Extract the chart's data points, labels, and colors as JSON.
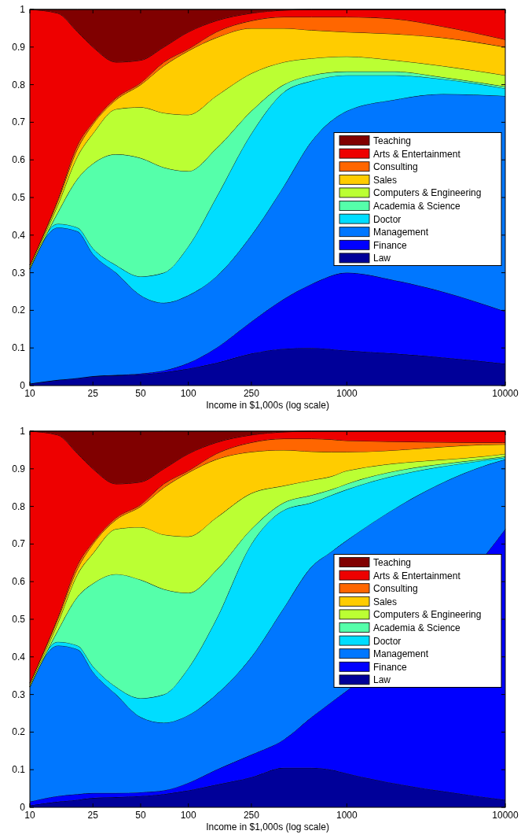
{
  "chart_data": [
    {
      "type": "area",
      "stacked": true,
      "log": "x",
      "legend": "right",
      "xlabel": "Income in $1,000s (log scale)",
      "xlim": [
        10,
        10000
      ],
      "xticks": [
        10,
        25,
        50,
        100,
        250,
        1000,
        10000
      ],
      "ylim": [
        0,
        1
      ],
      "yticks": [
        0,
        0.1,
        0.2,
        0.3,
        0.4,
        0.5,
        0.6,
        0.7,
        0.8,
        0.9,
        1
      ],
      "x": [
        10,
        15,
        20,
        25,
        35,
        50,
        70,
        100,
        150,
        250,
        400,
        600,
        1000,
        2000,
        4000,
        10000
      ],
      "series": [
        {
          "name": "Law",
          "color": "#000099",
          "values": [
            0.005,
            0.015,
            0.02,
            0.025,
            0.027,
            0.03,
            0.035,
            0.045,
            0.06,
            0.085,
            0.098,
            0.1,
            0.093,
            0.085,
            0.075,
            0.058
          ]
        },
        {
          "name": "Finance",
          "color": "#0000ff",
          "values": [
            0,
            0,
            0,
            0,
            0.001,
            0.002,
            0.005,
            0.015,
            0.04,
            0.085,
            0.132,
            0.17,
            0.207,
            0.195,
            0.175,
            0.139
          ]
        },
        {
          "name": "Management",
          "color": "#0077ff",
          "values": [
            0.305,
            0.405,
            0.39,
            0.325,
            0.272,
            0.208,
            0.18,
            0.18,
            0.19,
            0.23,
            0.3,
            0.38,
            0.43,
            0.48,
            0.525,
            0.573
          ]
        },
        {
          "name": "Doctor",
          "color": "#00ddff",
          "values": [
            0,
            0.01,
            0.01,
            0.015,
            0.02,
            0.05,
            0.08,
            0.13,
            0.21,
            0.27,
            0.25,
            0.16,
            0.095,
            0.065,
            0.04,
            0.02
          ]
        },
        {
          "name": "Academia & Science",
          "color": "#55ffaa",
          "values": [
            0,
            0.03,
            0.13,
            0.225,
            0.295,
            0.315,
            0.28,
            0.2,
            0.13,
            0.06,
            0.02,
            0.015,
            0.01,
            0.01,
            0.005,
            0.005
          ]
        },
        {
          "name": "Computers & Engineering",
          "color": "#bbff33",
          "values": [
            0.005,
            0.02,
            0.06,
            0.08,
            0.12,
            0.135,
            0.145,
            0.15,
            0.14,
            0.1,
            0.06,
            0.045,
            0.04,
            0.03,
            0.03,
            0.03
          ]
        },
        {
          "name": "Sales",
          "color": "#ffcc00",
          "values": [
            0.005,
            0.01,
            0.02,
            0.025,
            0.025,
            0.06,
            0.125,
            0.17,
            0.155,
            0.12,
            0.09,
            0.075,
            0.065,
            0.07,
            0.075,
            0.075
          ]
        },
        {
          "name": "Consulting",
          "color": "#ff6600",
          "values": [
            0,
            0.005,
            0.01,
            0.005,
            0.005,
            0.005,
            0.01,
            0.005,
            0.015,
            0.02,
            0.03,
            0.035,
            0.04,
            0.04,
            0.03,
            0.02
          ]
        },
        {
          "name": "Arts & Entertainment",
          "color": "#ee0000",
          "values": [
            0.68,
            0.495,
            0.3,
            0.2,
            0.095,
            0.06,
            0.04,
            0.045,
            0.03,
            0.02,
            0.018,
            0.02,
            0.02,
            0.025,
            0.045,
            0.08
          ]
        },
        {
          "name": "Teaching",
          "color": "#800000",
          "values": [
            0,
            0.01,
            0.06,
            0.1,
            0.14,
            0.135,
            0.1,
            0.06,
            0.03,
            0.01,
            0.002,
            0,
            0,
            0,
            0,
            0
          ]
        }
      ]
    },
    {
      "type": "area",
      "stacked": true,
      "log": "x",
      "legend": "right",
      "xlabel": "Income in $1,000s (log scale)",
      "xlim": [
        10,
        10000
      ],
      "xticks": [
        10,
        25,
        50,
        100,
        250,
        1000,
        10000
      ],
      "ylim": [
        0,
        1
      ],
      "yticks": [
        0,
        0.1,
        0.2,
        0.3,
        0.4,
        0.5,
        0.6,
        0.7,
        0.8,
        0.9,
        1
      ],
      "x": [
        10,
        15,
        20,
        25,
        35,
        50,
        70,
        100,
        150,
        250,
        400,
        600,
        800,
        1000,
        9600,
        10000
      ],
      "series": [
        {
          "name": "Law",
          "color": "#000099",
          "values": [
            0.005,
            0.015,
            0.02,
            0.025,
            0.027,
            0.03,
            0.035,
            0.045,
            0.06,
            0.08,
            0.105,
            0.105,
            0.1,
            0.09,
            0.021,
            0.02
          ]
        },
        {
          "name": "Finance",
          "color": "#0000ff",
          "values": [
            0.01,
            0.015,
            0.015,
            0.013,
            0.011,
            0.01,
            0.01,
            0.02,
            0.04,
            0.06,
            0.075,
            0.135,
            0.18,
            0.22,
            0.709,
            0.72
          ]
        },
        {
          "name": "Management",
          "color": "#0077ff",
          "values": [
            0.305,
            0.4,
            0.385,
            0.322,
            0.262,
            0.2,
            0.18,
            0.18,
            0.2,
            0.26,
            0.35,
            0.4,
            0.4,
            0.4,
            0.193,
            0.185
          ]
        },
        {
          "name": "Doctor",
          "color": "#00ddff",
          "values": [
            0,
            0.01,
            0.01,
            0.015,
            0.02,
            0.05,
            0.075,
            0.125,
            0.2,
            0.3,
            0.26,
            0.17,
            0.15,
            0.135,
            0.006,
            0.005
          ]
        },
        {
          "name": "Academia & Science",
          "color": "#55ffaa",
          "values": [
            0,
            0.03,
            0.13,
            0.22,
            0.3,
            0.315,
            0.28,
            0.2,
            0.13,
            0.04,
            0.02,
            0.02,
            0.015,
            0.015,
            0.003,
            0.003
          ]
        },
        {
          "name": "Computers & Engineering",
          "color": "#bbff33",
          "values": [
            0.005,
            0.02,
            0.06,
            0.08,
            0.12,
            0.14,
            0.145,
            0.15,
            0.14,
            0.095,
            0.045,
            0.04,
            0.035,
            0.035,
            0.007,
            0.007
          ]
        },
        {
          "name": "Sales",
          "color": "#ffcc00",
          "values": [
            0.005,
            0.01,
            0.015,
            0.025,
            0.025,
            0.055,
            0.125,
            0.17,
            0.155,
            0.11,
            0.095,
            0.076,
            0.065,
            0.05,
            0.026,
            0.025
          ]
        },
        {
          "name": "Consulting",
          "color": "#ff6600",
          "values": [
            0,
            0.005,
            0.01,
            0.005,
            0.005,
            0.005,
            0.01,
            0.005,
            0.015,
            0.025,
            0.03,
            0.034,
            0.033,
            0.03,
            0.005,
            0.005
          ]
        },
        {
          "name": "Arts & Entertainment",
          "color": "#ee0000",
          "values": [
            0.67,
            0.485,
            0.295,
            0.195,
            0.09,
            0.06,
            0.04,
            0.045,
            0.03,
            0.02,
            0.018,
            0.02,
            0.022,
            0.025,
            0.03,
            0.03
          ]
        },
        {
          "name": "Teaching",
          "color": "#800000",
          "values": [
            0,
            0.01,
            0.06,
            0.1,
            0.14,
            0.135,
            0.1,
            0.06,
            0.03,
            0.01,
            0.002,
            0,
            0,
            0,
            0,
            0
          ]
        }
      ]
    }
  ]
}
